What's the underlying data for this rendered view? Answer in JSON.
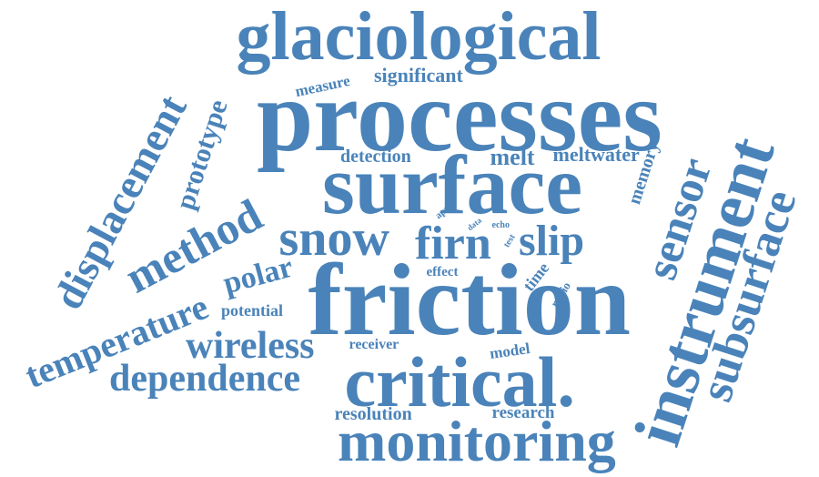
{
  "color": "#4a83b9",
  "words": [
    {
      "id": "glaciological",
      "text": "glaciological"
    },
    {
      "id": "processes",
      "text": "processes"
    },
    {
      "id": "surface",
      "text": "surface"
    },
    {
      "id": "friction",
      "text": "friction"
    },
    {
      "id": "critical",
      "text": "critical."
    },
    {
      "id": "monitoring",
      "text": "monitoring"
    },
    {
      "id": "instrument",
      "text": "instrument"
    },
    {
      "id": "subsurface",
      "text": "subsurface"
    },
    {
      "id": "sensor",
      "text": "sensor"
    },
    {
      "id": "snow",
      "text": "snow"
    },
    {
      "id": "firn",
      "text": "firn"
    },
    {
      "id": "slip",
      "text": "slip"
    },
    {
      "id": "method",
      "text": "method"
    },
    {
      "id": "displacement",
      "text": "displacement"
    },
    {
      "id": "temperature",
      "text": "temperature"
    },
    {
      "id": "dependence",
      "text": "dependence"
    },
    {
      "id": "wireless",
      "text": "wireless"
    },
    {
      "id": "polar",
      "text": "polar"
    },
    {
      "id": "prototype",
      "text": "prototype"
    },
    {
      "id": "melt",
      "text": "melt"
    },
    {
      "id": "meltwater",
      "text": "meltwater"
    },
    {
      "id": "memory",
      "text": "memory"
    },
    {
      "id": "significant",
      "text": "significant"
    },
    {
      "id": "measure",
      "text": "measure"
    },
    {
      "id": "detection",
      "text": "detection"
    },
    {
      "id": "potential",
      "text": "potential"
    },
    {
      "id": "effect",
      "text": "effect"
    },
    {
      "id": "time",
      "text": "time"
    },
    {
      "id": "radio",
      "text": "radio"
    },
    {
      "id": "receiver",
      "text": "receiver"
    },
    {
      "id": "model",
      "text": "model"
    },
    {
      "id": "resolution",
      "text": "resolution"
    },
    {
      "id": "research",
      "text": "research"
    },
    {
      "id": "apres",
      "text": "apres"
    },
    {
      "id": "data",
      "text": "data"
    },
    {
      "id": "echo",
      "text": "echo"
    },
    {
      "id": "test",
      "text": "test"
    }
  ]
}
